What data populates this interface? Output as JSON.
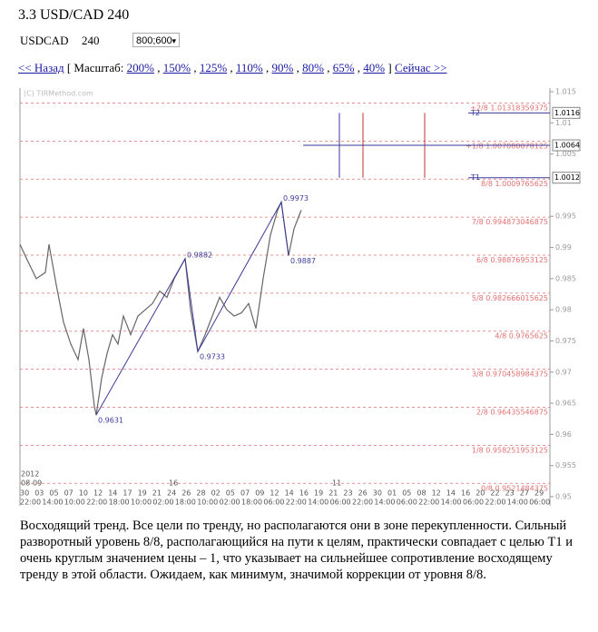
{
  "header": {
    "title": "3.3 USD/CAD 240",
    "symbol": "USDCAD",
    "period": "240",
    "size_option": "800;600"
  },
  "nav": {
    "back": "<< Назад",
    "scale_label": "[ Масштаб:",
    "scales": [
      "200%",
      "150%",
      "125%",
      "110%",
      "90%",
      "80%",
      "65%",
      "40%"
    ],
    "separator": ",",
    "close": "]",
    "now": "Сейчас >>"
  },
  "chart_data": {
    "type": "line",
    "watermark": "(C) TIRMethod.com",
    "x": [
      0,
      2,
      4.5,
      7,
      8,
      10,
      12,
      14,
      16,
      17.5,
      19,
      20.5,
      21,
      22.5,
      24,
      25.5,
      27,
      28.5,
      30.5,
      32.5,
      34.5,
      36.5,
      38.5,
      40.5,
      42.5,
      45.5,
      47,
      49,
      51,
      53,
      55,
      57,
      59,
      61,
      63,
      65,
      67,
      69,
      71,
      72,
      74,
      75.5,
      77.5
    ],
    "series": [
      {
        "color": "#666666",
        "values": [
          0.9905,
          0.988,
          0.985,
          0.986,
          0.9905,
          0.984,
          0.978,
          0.9745,
          0.972,
          0.977,
          0.972,
          0.9645,
          0.9631,
          0.969,
          0.973,
          0.976,
          0.9745,
          0.979,
          0.976,
          0.979,
          0.98,
          0.981,
          0.983,
          0.982,
          0.985,
          0.9882,
          0.98,
          0.9733,
          0.976,
          0.979,
          0.982,
          0.98,
          0.979,
          0.9795,
          0.981,
          0.977,
          0.985,
          0.992,
          0.996,
          0.9973,
          0.9887,
          0.993,
          0.996
        ]
      }
    ],
    "wave": {
      "color": "#3a3a9a",
      "x": [
        21,
        45.5,
        49,
        72,
        74
      ],
      "values": [
        0.9631,
        0.9882,
        0.9733,
        0.9973,
        0.9887
      ]
    },
    "levels": [
      {
        "name": "+2/8",
        "value": 1.01318359375
      },
      {
        "name": "+1/8",
        "value": 1.007080078125
      },
      {
        "name": "8/8",
        "value": 1.0009765625
      },
      {
        "name": "7/8",
        "value": 0.994873046875
      },
      {
        "name": "6/8",
        "value": 0.98876953125
      },
      {
        "name": "5/8",
        "value": 0.982666015625
      },
      {
        "name": "4/8",
        "value": 0.9765625
      },
      {
        "name": "3/8",
        "value": 0.970458984375
      },
      {
        "name": "2/8",
        "value": 0.96435546875
      },
      {
        "name": "1/8",
        "value": 0.958251953125
      },
      {
        "name": "0/8",
        "value": 0.9521484375
      }
    ],
    "level_color": "#e07070",
    "targets": [
      {
        "name": "T2",
        "value": 1.0116
      },
      {
        "value": 1.0064
      },
      {
        "name": "T1",
        "value": 1.0012
      }
    ],
    "target_lines": {
      "blue": [
        88
      ],
      "red": [
        94.5,
        111.5
      ]
    },
    "xlim": [
      0,
      146
    ],
    "ylim": [
      0.95,
      1.015
    ],
    "yticks": [
      1.015,
      1.01,
      1.005,
      0.995,
      0.99,
      0.985,
      0.98,
      0.975,
      0.97,
      0.965,
      0.96,
      0.955,
      0.95
    ],
    "x_axis": {
      "year": "2012",
      "months": [
        "08",
        "09"
      ],
      "markers": [
        {
          "label": "16",
          "x": 41
        },
        {
          "label": "11",
          "x": 86
        }
      ],
      "days": [
        "30",
        "03",
        "05",
        "07",
        "10",
        "12",
        "14",
        "17",
        "19",
        "21",
        "24",
        "26",
        "28",
        "02",
        "05",
        "07",
        "09",
        "12",
        "14",
        "16",
        "19",
        "21",
        "23",
        "26",
        "30",
        "01",
        "05",
        "08",
        "12",
        "14",
        "16",
        "20",
        "22",
        "23",
        "27",
        "29"
      ],
      "times": [
        "22:00",
        "14:00",
        "10:00",
        "22:00",
        "18:00",
        "10:00",
        "02:00",
        "18:00",
        "10:00",
        "02:00",
        "18:00",
        "06:00",
        "22:00",
        "14:00",
        "06:00",
        "22:00",
        "14:00",
        "06:00",
        "22:00",
        "14:00",
        "06:00",
        "22:00",
        "14:00",
        "06:00"
      ]
    }
  },
  "description": "Восходящий тренд. Все цели по тренду, но располагаются они в зоне перекупленности. Сильный разворотный уровень 8/8, располагающийся на пути к целям, практически совпадает с целью T1 и очень круглым значением цены – 1, что указывает на сильнейшее сопротивление восходящему тренду в этой области.  Ожидаем, как минимум, значимой коррекции от уровня 8/8."
}
